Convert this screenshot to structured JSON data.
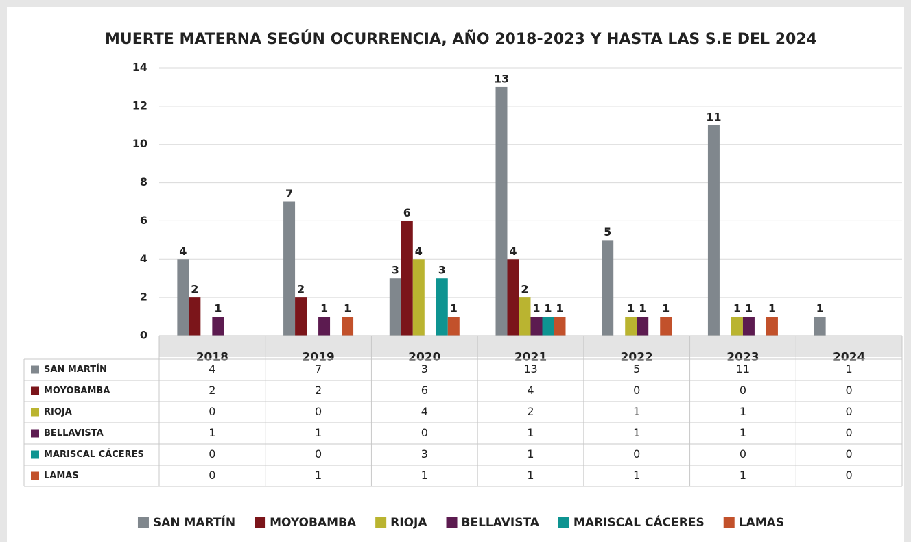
{
  "chart_data": {
    "type": "bar",
    "title": "MUERTE MATERNA SEGÚN OCURRENCIA, AÑO 2018-2023 Y HASTA LAS S.E DEL 2024",
    "categories": [
      "2018",
      "2019",
      "2020",
      "2021",
      "2022",
      "2023",
      "2024"
    ],
    "series": [
      {
        "name": "SAN MARTÍN",
        "color": "#80878d",
        "values": [
          4,
          7,
          3,
          13,
          5,
          11,
          1
        ]
      },
      {
        "name": "MOYOBAMBA",
        "color": "#7b151a",
        "values": [
          2,
          2,
          6,
          4,
          0,
          0,
          0
        ]
      },
      {
        "name": "RIOJA",
        "color": "#bab430",
        "values": [
          0,
          0,
          4,
          2,
          1,
          1,
          0
        ]
      },
      {
        "name": "BELLAVISTA",
        "color": "#5c1b50",
        "values": [
          1,
          1,
          0,
          1,
          1,
          1,
          0
        ]
      },
      {
        "name": "MARISCAL CÁCERES",
        "color": "#0e9491",
        "values": [
          0,
          0,
          3,
          1,
          0,
          0,
          0
        ]
      },
      {
        "name": "LAMAS",
        "color": "#c2512b",
        "values": [
          0,
          1,
          1,
          1,
          1,
          1,
          0
        ]
      }
    ],
    "ylim": [
      0,
      14
    ],
    "yticks": [
      0,
      2,
      4,
      6,
      8,
      10,
      12,
      14
    ],
    "grid": true,
    "legend": "bottom"
  }
}
